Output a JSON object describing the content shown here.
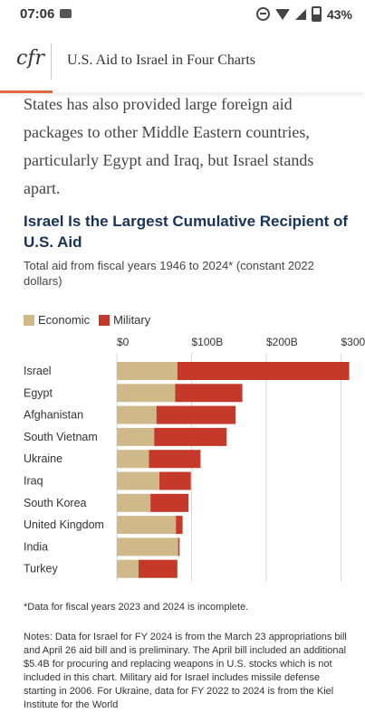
{
  "status": {
    "time": "07:06",
    "battery": "43%"
  },
  "header": {
    "logo": "cfr",
    "title": "U.S. Aid to Israel in Four Charts"
  },
  "article": {
    "paragraph": "States has also provided large foreign aid packages to other Middle Eastern countries, particularly Egypt and Iraq, but Israel stands apart."
  },
  "chart_text": {
    "title": "Israel Is the Largest Cumulative Recipient of U.S. Aid",
    "subtitle": "Total aid from fiscal years 1946 to 2024* (constant 2022 dollars)",
    "legend_economic": "Economic",
    "legend_military": "Military"
  },
  "colors": {
    "economic": "#cfb98a",
    "military": "#c5392a",
    "title": "#17335a",
    "accent": "#e06a3f"
  },
  "chart_data": {
    "type": "bar",
    "orientation": "horizontal",
    "stacked": true,
    "title": "Israel Is the Largest Cumulative Recipient of U.S. Aid",
    "subtitle": "Total aid from fiscal years 1946 to 2024* (constant 2022 dollars)",
    "categories": [
      "Israel",
      "Egypt",
      "Afghanistan",
      "South Vietnam",
      "Ukraine",
      "Iraq",
      "South Korea",
      "United Kingdom",
      "India",
      "Turkey"
    ],
    "series": [
      {
        "name": "Economic",
        "values": [
          81,
          78,
          53,
          50,
          43,
          57,
          45,
          79,
          82,
          29
        ]
      },
      {
        "name": "Military",
        "values": [
          230,
          90,
          106,
          97,
          69,
          42,
          51,
          9,
          2,
          52
        ]
      }
    ],
    "tick_labels": [
      "$0",
      "$100B",
      "$200B",
      "$300B"
    ],
    "ticks": [
      0,
      100,
      200,
      300
    ],
    "xlim": [
      0,
      315
    ],
    "grid": true,
    "legend_position": "top-left"
  },
  "footnote": "*Data for fiscal years 2023 and 2024 is incomplete.",
  "notes": "Notes: Data for Israel for FY 2024 is from the March 23 appropriations bill and April 26 aid bill and is preliminary. The April bill included an additional $5.4B for procuring and replacing weapons in U.S. stocks which is not included in this chart. Military aid for Israel includes missile defense starting in 2006. For Ukraine, data for FY 2022 to 2024 is from the Kiel Institute for the World"
}
